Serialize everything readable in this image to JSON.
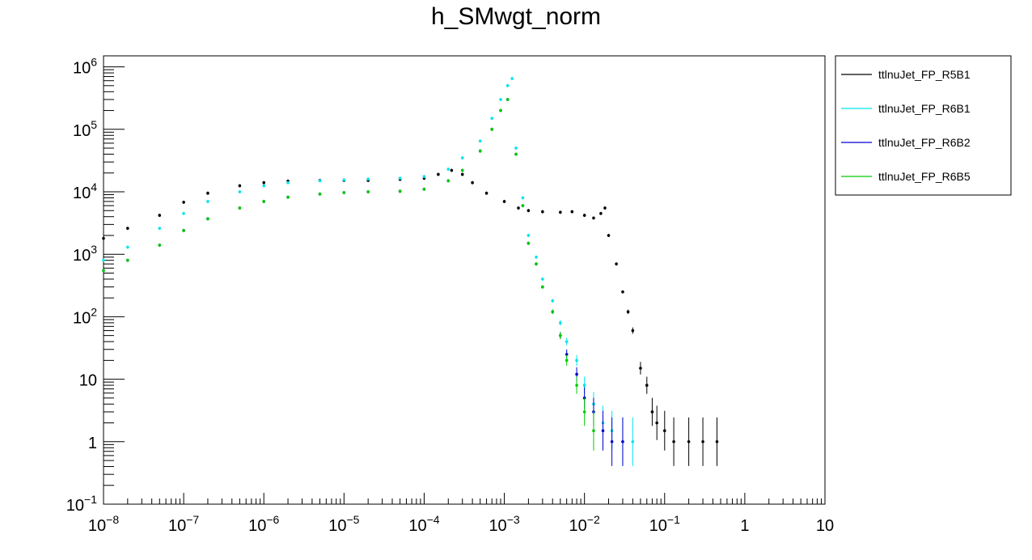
{
  "chart_data": {
    "type": "scatter",
    "title": "h_SMwgt_norm",
    "xlabel": "",
    "ylabel": "",
    "xscale": "log",
    "yscale": "log",
    "xlim": [
      1e-08,
      10
    ],
    "ylim": [
      0.1,
      1500000
    ],
    "grid": false,
    "legend_position": "outside-right-top",
    "x_ticks": [
      {
        "value": 1e-08,
        "base": "10",
        "exp": "−8"
      },
      {
        "value": 1e-07,
        "base": "10",
        "exp": "−7"
      },
      {
        "value": 1e-06,
        "base": "10",
        "exp": "−6"
      },
      {
        "value": 1e-05,
        "base": "10",
        "exp": "−5"
      },
      {
        "value": 0.0001,
        "base": "10",
        "exp": "−4"
      },
      {
        "value": 0.001,
        "base": "10",
        "exp": "−3"
      },
      {
        "value": 0.01,
        "base": "10",
        "exp": "−2"
      },
      {
        "value": 0.1,
        "base": "10",
        "exp": "−1"
      },
      {
        "value": 1,
        "base": "1",
        "exp": ""
      },
      {
        "value": 10,
        "base": "10",
        "exp": ""
      }
    ],
    "y_ticks": [
      {
        "value": 0.1,
        "base": "10",
        "exp": "−1"
      },
      {
        "value": 1,
        "base": "1",
        "exp": ""
      },
      {
        "value": 10,
        "base": "10",
        "exp": ""
      },
      {
        "value": 100,
        "base": "10",
        "exp": "2"
      },
      {
        "value": 1000,
        "base": "10",
        "exp": "3"
      },
      {
        "value": 10000,
        "base": "10",
        "exp": "4"
      },
      {
        "value": 100000,
        "base": "10",
        "exp": "5"
      },
      {
        "value": 1000000,
        "base": "10",
        "exp": "6"
      }
    ],
    "series": [
      {
        "name": "ttlnuJet_FP_R5B1",
        "color": "#000000",
        "x": [
          1e-08,
          2e-08,
          5e-08,
          1e-07,
          2e-07,
          5e-07,
          1e-06,
          2e-06,
          5e-06,
          1e-05,
          2e-05,
          5e-05,
          0.0001,
          0.00015,
          0.00022,
          0.0003,
          0.0004,
          0.0006,
          0.001,
          0.0015,
          0.002,
          0.003,
          0.005,
          0.007,
          0.01,
          0.013,
          0.016,
          0.018,
          0.02,
          0.025,
          0.03,
          0.035,
          0.04,
          0.05,
          0.06,
          0.07,
          0.08,
          0.1,
          0.13,
          0.2,
          0.3,
          0.45
        ],
        "y": [
          1800,
          2600,
          4200,
          6800,
          9500,
          12500,
          14000,
          14800,
          15200,
          15200,
          15200,
          15800,
          16500,
          19000,
          22000,
          19000,
          14000,
          9500,
          7000,
          5500,
          5000,
          4800,
          4700,
          4800,
          4200,
          3800,
          4500,
          5500,
          2000,
          700,
          250,
          120,
          60,
          15,
          8,
          3,
          2,
          1.5,
          1,
          1,
          1,
          1
        ]
      },
      {
        "name": "ttlnuJet_FP_R6B1",
        "color": "#00e5ee",
        "x": [
          1e-08,
          2e-08,
          5e-08,
          1e-07,
          2e-07,
          5e-07,
          1e-06,
          2e-06,
          5e-06,
          1e-05,
          2e-05,
          5e-05,
          0.0001,
          0.0002,
          0.0003,
          0.0005,
          0.0007,
          0.0009,
          0.0011,
          0.00125,
          0.0014,
          0.0017,
          0.002,
          0.0025,
          0.003,
          0.004,
          0.005,
          0.006,
          0.008,
          0.01,
          0.013,
          0.017,
          0.022,
          0.03,
          0.04
        ],
        "y": [
          800,
          1300,
          2600,
          4500,
          7000,
          10000,
          12500,
          14000,
          15000,
          15500,
          16000,
          16500,
          17500,
          23000,
          35000,
          65000,
          150000,
          300000,
          500000,
          650000,
          50000,
          8000,
          2000,
          900,
          400,
          180,
          80,
          40,
          20,
          8,
          4,
          2,
          1.5,
          1,
          1
        ]
      },
      {
        "name": "ttlnuJet_FP_R6B2",
        "color": "#0000cc",
        "x": [
          1e-08,
          2e-08,
          5e-08,
          1e-07,
          2e-07,
          5e-07,
          1e-06,
          2e-06,
          5e-06,
          1e-05,
          2e-05,
          5e-05,
          0.0001,
          0.0002,
          0.0003,
          0.0005,
          0.0007,
          0.0009,
          0.0011,
          0.0014,
          0.0017,
          0.002,
          0.0025,
          0.003,
          0.004,
          0.005,
          0.006,
          0.008,
          0.01,
          0.013,
          0.017,
          0.022,
          0.03
        ],
        "y": [
          550,
          800,
          1400,
          2400,
          3700,
          5500,
          7000,
          8200,
          9200,
          9700,
          10000,
          10200,
          11000,
          15000,
          22000,
          45000,
          100000,
          200000,
          300000,
          40000,
          6000,
          1500,
          700,
          300,
          120,
          50,
          25,
          12,
          5,
          3,
          1.5,
          1,
          1
        ]
      },
      {
        "name": "ttlnuJet_FP_R6B5",
        "color": "#00cc00",
        "x": [
          1e-08,
          2e-08,
          5e-08,
          1e-07,
          2e-07,
          5e-07,
          1e-06,
          2e-06,
          5e-06,
          1e-05,
          2e-05,
          5e-05,
          0.0001,
          0.0002,
          0.0003,
          0.0005,
          0.0007,
          0.0009,
          0.0011,
          0.0014,
          0.0017,
          0.002,
          0.0025,
          0.003,
          0.004,
          0.005,
          0.006,
          0.008,
          0.01,
          0.013
        ],
        "y": [
          550,
          800,
          1400,
          2400,
          3700,
          5500,
          7000,
          8200,
          9200,
          9700,
          10000,
          10200,
          11000,
          15000,
          22000,
          45000,
          100000,
          200000,
          300000,
          40000,
          6000,
          1500,
          700,
          300,
          120,
          50,
          20,
          8,
          3,
          1.5
        ]
      }
    ]
  }
}
